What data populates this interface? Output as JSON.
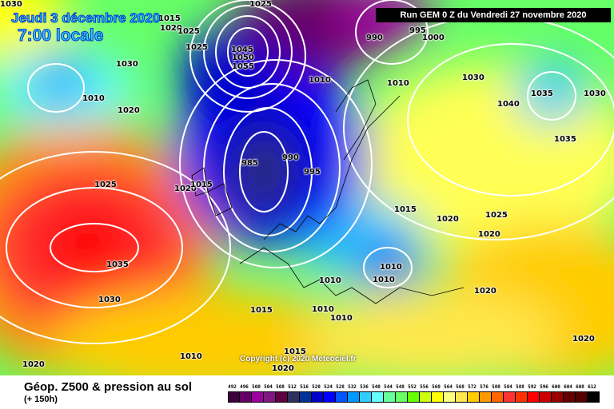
{
  "header": {
    "date": "Jeudi 3 décembre 2020",
    "time": "7:00 locale",
    "run": "Run GEM 0 Z du Vendredi 27 novembre 2020"
  },
  "footer": {
    "title": "Géop. Z500 & pression au sol",
    "subtitle": "(+ 150h)",
    "copyright": "Copyright (c) 2020 Meteociel.fr"
  },
  "legend": {
    "levels": [
      "492",
      "496",
      "500",
      "504",
      "508",
      "512",
      "516",
      "520",
      "524",
      "528",
      "532",
      "536",
      "540",
      "544",
      "548",
      "552",
      "556",
      "560",
      "564",
      "568",
      "572",
      "576",
      "580",
      "584",
      "588",
      "592",
      "596",
      "600",
      "604",
      "608",
      "612"
    ],
    "colors": [
      "#400040",
      "#660066",
      "#a000a0",
      "#801880",
      "#600040",
      "#303060",
      "#003399",
      "#0000cc",
      "#0000ff",
      "#0055ff",
      "#0099ff",
      "#33ccff",
      "#66ffff",
      "#66ff99",
      "#66ff66",
      "#66ff00",
      "#ccff11",
      "#ffff00",
      "#ffff80",
      "#ffe84c",
      "#ffcc00",
      "#ff9900",
      "#ff6600",
      "#ff3333",
      "#ff3300",
      "#ff0000",
      "#cc0000",
      "#990000",
      "#660000",
      "#550000",
      "#000000"
    ]
  },
  "isobar_labels": [
    "1030",
    "1015",
    "1020",
    "1025",
    "1025",
    "1025",
    "1030",
    "1010",
    "1020",
    "1025",
    "1020",
    "1015",
    "1035",
    "1030",
    "1020",
    "1010",
    "1015",
    "1010",
    "1010",
    "1015",
    "1020",
    "990",
    "995",
    "1000",
    "1010",
    "1010",
    "1030",
    "1040",
    "1035",
    "1030",
    "1035",
    "985",
    "990",
    "995",
    "1010",
    "1010",
    "1010",
    "1015",
    "1020",
    "1025",
    "1020",
    "1020",
    "1020",
    "1050",
    "1045",
    "1055"
  ]
}
